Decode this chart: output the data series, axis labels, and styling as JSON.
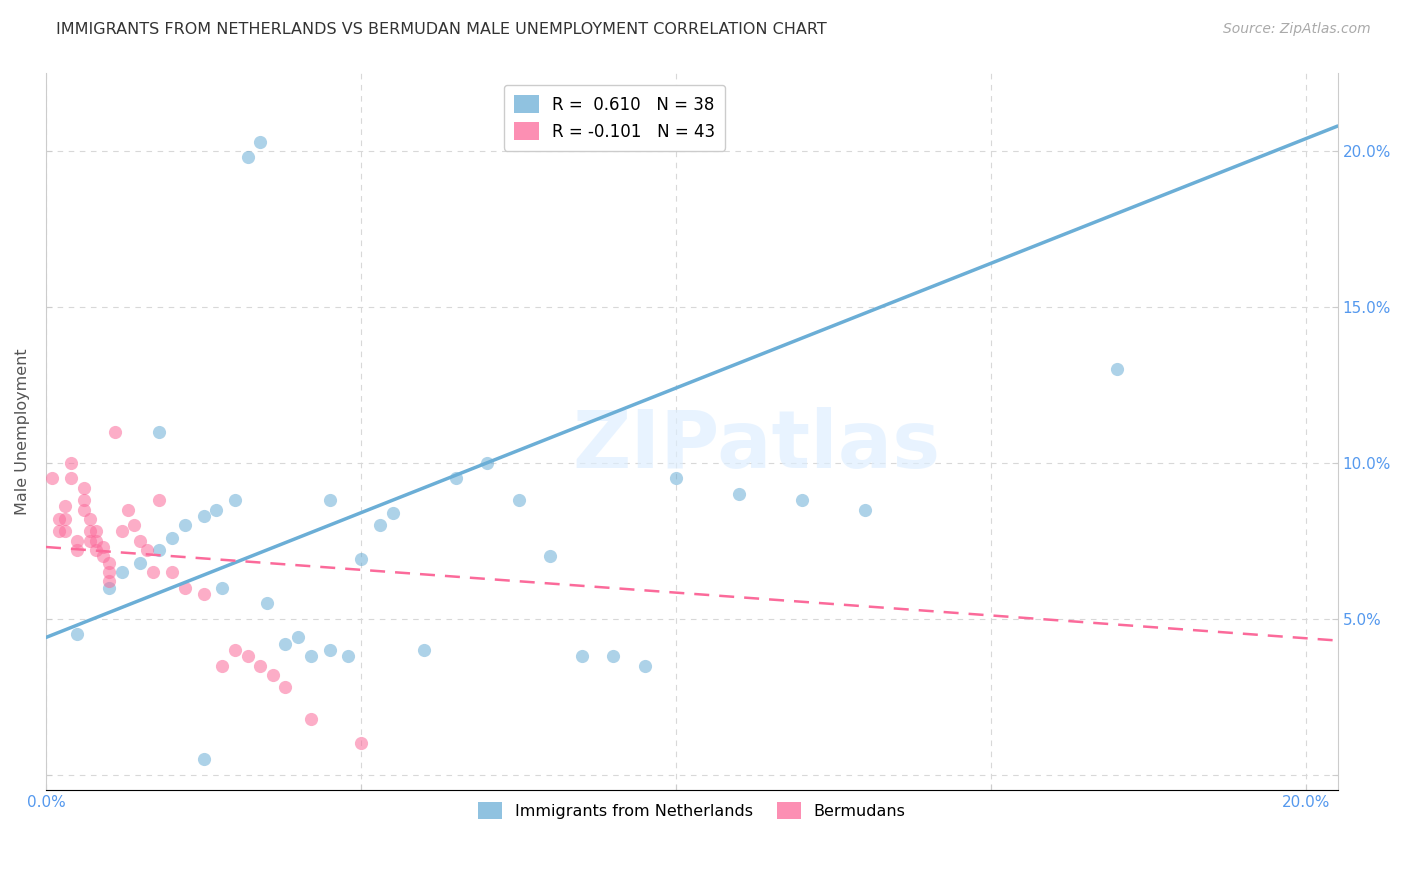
{
  "title": "IMMIGRANTS FROM NETHERLANDS VS BERMUDAN MALE UNEMPLOYMENT CORRELATION CHART",
  "source": "Source: ZipAtlas.com",
  "ylabel": "Male Unemployment",
  "legend_entries": [
    {
      "label": "R =  0.610   N = 38",
      "color": "#6baed6"
    },
    {
      "label": "R = -0.101   N = 43",
      "color": "#fb6a9a"
    }
  ],
  "legend_labels_bottom": [
    "Immigrants from Netherlands",
    "Bermudans"
  ],
  "xmin": 0.0,
  "xmax": 0.205,
  "ymin": -0.005,
  "ymax": 0.225,
  "yticks": [
    0.0,
    0.05,
    0.1,
    0.15,
    0.2
  ],
  "ytick_labels_left": [
    "",
    "",
    "",
    "",
    ""
  ],
  "ytick_labels_right": [
    "",
    "5.0%",
    "10.0%",
    "15.0%",
    "20.0%"
  ],
  "xticks": [
    0.0,
    0.05,
    0.1,
    0.15,
    0.2
  ],
  "xtick_labels": [
    "0.0%",
    "",
    "",
    "",
    "20.0%"
  ],
  "blue_scatter_x": [
    0.032,
    0.034,
    0.005,
    0.01,
    0.012,
    0.015,
    0.018,
    0.02,
    0.022,
    0.025,
    0.027,
    0.03,
    0.035,
    0.038,
    0.04,
    0.042,
    0.045,
    0.048,
    0.05,
    0.053,
    0.055,
    0.06,
    0.065,
    0.07,
    0.075,
    0.08,
    0.085,
    0.09,
    0.095,
    0.1,
    0.11,
    0.12,
    0.13,
    0.17,
    0.025,
    0.028,
    0.018,
    0.045
  ],
  "blue_scatter_y": [
    0.198,
    0.203,
    0.045,
    0.06,
    0.065,
    0.068,
    0.072,
    0.076,
    0.08,
    0.083,
    0.085,
    0.088,
    0.055,
    0.042,
    0.044,
    0.038,
    0.04,
    0.038,
    0.069,
    0.08,
    0.084,
    0.04,
    0.095,
    0.1,
    0.088,
    0.07,
    0.038,
    0.038,
    0.035,
    0.095,
    0.09,
    0.088,
    0.085,
    0.13,
    0.005,
    0.06,
    0.11,
    0.088
  ],
  "pink_scatter_x": [
    0.001,
    0.002,
    0.002,
    0.003,
    0.003,
    0.003,
    0.004,
    0.004,
    0.005,
    0.005,
    0.006,
    0.006,
    0.006,
    0.007,
    0.007,
    0.007,
    0.008,
    0.008,
    0.008,
    0.009,
    0.009,
    0.01,
    0.01,
    0.01,
    0.011,
    0.012,
    0.013,
    0.014,
    0.015,
    0.016,
    0.017,
    0.018,
    0.02,
    0.022,
    0.025,
    0.028,
    0.03,
    0.032,
    0.034,
    0.036,
    0.038,
    0.042,
    0.05
  ],
  "pink_scatter_y": [
    0.095,
    0.082,
    0.078,
    0.086,
    0.082,
    0.078,
    0.1,
    0.095,
    0.075,
    0.072,
    0.092,
    0.088,
    0.085,
    0.082,
    0.078,
    0.075,
    0.078,
    0.075,
    0.072,
    0.073,
    0.07,
    0.068,
    0.065,
    0.062,
    0.11,
    0.078,
    0.085,
    0.08,
    0.075,
    0.072,
    0.065,
    0.088,
    0.065,
    0.06,
    0.058,
    0.035,
    0.04,
    0.038,
    0.035,
    0.032,
    0.028,
    0.018,
    0.01
  ],
  "blue_line_x": [
    0.0,
    0.205
  ],
  "blue_line_y": [
    0.044,
    0.208
  ],
  "pink_line_x": [
    0.0,
    0.205
  ],
  "pink_line_y": [
    0.073,
    0.043
  ],
  "watermark": "ZIPatlas",
  "bg_color": "#ffffff",
  "scatter_alpha": 0.55,
  "scatter_size": 90,
  "blue_color": "#6baed6",
  "pink_color": "#fb6a9a",
  "grid_color": "#d8d8d8",
  "title_color": "#333333",
  "tick_color": "#5599ee"
}
